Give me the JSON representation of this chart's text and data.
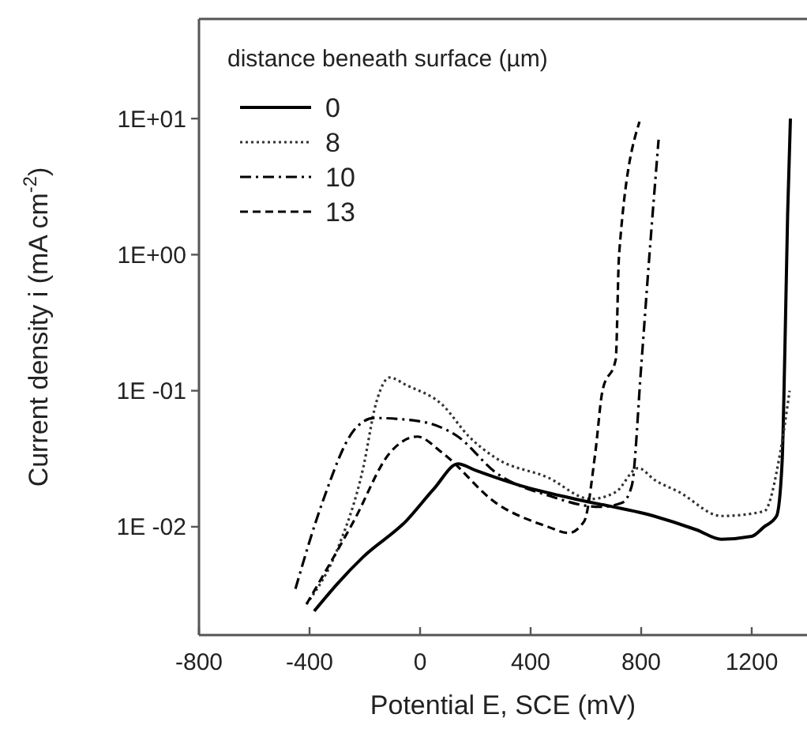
{
  "chart_data": {
    "type": "line",
    "xlabel": "Potential E, SCE (mV)",
    "ylabel": "Current density i (mA cm$^{-2}$)",
    "legend_title": "distance beneath surface (µm)",
    "legend": "top left",
    "log": "y",
    "grid": false,
    "xlim": [
      -800,
      1400
    ],
    "xticks": [
      -800,
      -400,
      0,
      400,
      800,
      1200
    ],
    "ylim": [
      0.0016,
      54
    ],
    "yticks": [
      {
        "value": 0.01,
        "label": "1E -02"
      },
      {
        "value": 0.1,
        "label": "1E -01"
      },
      {
        "value": 1,
        "label": "1E+00"
      },
      {
        "value": 10,
        "label": "1E+01"
      }
    ],
    "series": [
      {
        "name": "0",
        "color": "#000000",
        "line_style": "solid",
        "x": [
          -383,
          -300,
          -206,
          -51,
          50,
          137,
          200,
          366,
          560,
          845,
          1000,
          1090,
          1200,
          1245,
          1290,
          1310,
          1320,
          1330,
          1340
        ],
        "values": [
          0.0024,
          0.0038,
          0.006,
          0.011,
          0.019,
          0.029,
          0.026,
          0.02,
          0.016,
          0.012,
          0.0095,
          0.0081,
          0.0085,
          0.01,
          0.012,
          0.03,
          0.2,
          2,
          10
        ]
      },
      {
        "name": "8",
        "color": "#333333",
        "line_style": "dotted",
        "x": [
          -411,
          -297,
          -206,
          -160,
          -110,
          -50,
          80,
          177,
          274,
          463,
          617,
          708,
          789,
          850,
          937,
          1091,
          1245,
          1303,
          1337
        ],
        "values": [
          0.0027,
          0.007,
          0.027,
          0.08,
          0.125,
          0.11,
          0.079,
          0.046,
          0.032,
          0.023,
          0.016,
          0.018,
          0.027,
          0.022,
          0.018,
          0.012,
          0.013,
          0.035,
          0.1
        ]
      },
      {
        "name": "10",
        "color": "#000000",
        "line_style": "dashdot",
        "x": [
          -451,
          -354,
          -240,
          -166,
          -11,
          137,
          274,
          463,
          651,
          731,
          766,
          800,
          830,
          863
        ],
        "values": [
          0.0035,
          0.015,
          0.051,
          0.063,
          0.06,
          0.046,
          0.025,
          0.017,
          0.014,
          0.015,
          0.02,
          0.15,
          1,
          7
        ]
      },
      {
        "name": "13",
        "color": "#000000",
        "line_style": "dashed",
        "x": [
          -411,
          -240,
          -109,
          -11,
          80,
          274,
          463,
          537,
          594,
          634,
          660,
          708,
          720,
          794
        ],
        "values": [
          0.0027,
          0.011,
          0.035,
          0.046,
          0.035,
          0.015,
          0.01,
          0.009,
          0.011,
          0.035,
          0.1,
          0.17,
          1,
          9.5
        ]
      }
    ]
  }
}
